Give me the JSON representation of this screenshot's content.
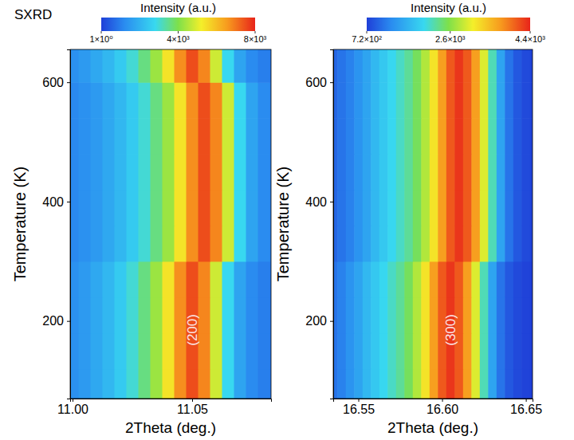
{
  "chart_data": [
    {
      "type": "heatmap",
      "title": "SXRD",
      "xlabel": "2Theta (deg.)",
      "ylabel": "Temperature (K)",
      "xlim": [
        10.999,
        11.083
      ],
      "xticks": [
        {
          "value": 11.0,
          "label": "11.00"
        },
        11.05
      ],
      "ylim": [
        70,
        655
      ],
      "yticks": [
        200,
        400,
        600
      ],
      "x": [
        11.0,
        11.005,
        11.01,
        11.015,
        11.02,
        11.025,
        11.03,
        11.035,
        11.04,
        11.045,
        11.05,
        11.055,
        11.06,
        11.065,
        11.07,
        11.075,
        11.08,
        11.085
      ],
      "y": [
        90,
        150,
        210,
        270,
        330,
        390,
        450,
        510,
        570,
        630
      ],
      "values": [
        [
          1300,
          1500,
          1800,
          2100,
          2500,
          3000,
          3600,
          4300,
          5400,
          6700,
          7500,
          6800,
          4800,
          2800,
          1700,
          1200,
          1000,
          900
        ],
        [
          1300,
          1500,
          1800,
          2100,
          2500,
          3000,
          3600,
          4300,
          5400,
          6700,
          7500,
          6800,
          4800,
          2800,
          1700,
          1200,
          1000,
          900
        ],
        [
          1300,
          1500,
          1800,
          2100,
          2500,
          3000,
          3600,
          4300,
          5400,
          6700,
          7500,
          6800,
          4800,
          2800,
          1700,
          1200,
          1000,
          900
        ],
        [
          1300,
          1500,
          1800,
          2100,
          2500,
          3000,
          3600,
          4300,
          5400,
          6700,
          7500,
          6800,
          4800,
          2800,
          1700,
          1200,
          1000,
          900
        ],
        [
          1150,
          1300,
          1500,
          1800,
          2100,
          2500,
          3000,
          3600,
          4300,
          5400,
          6700,
          7500,
          6800,
          4800,
          2800,
          1700,
          1200,
          1000
        ],
        [
          1150,
          1300,
          1500,
          1800,
          2100,
          2500,
          3000,
          3600,
          4300,
          5400,
          6700,
          7500,
          6800,
          4800,
          2800,
          1700,
          1200,
          1000
        ],
        [
          1150,
          1300,
          1500,
          1800,
          2100,
          2500,
          3000,
          3600,
          4300,
          5400,
          6700,
          7500,
          6800,
          4800,
          2800,
          1700,
          1200,
          1000
        ],
        [
          1150,
          1300,
          1500,
          1800,
          2100,
          2500,
          3000,
          3600,
          4300,
          5400,
          6700,
          7500,
          6800,
          4800,
          2800,
          1700,
          1200,
          1000
        ],
        [
          1150,
          1300,
          1500,
          1800,
          2100,
          2500,
          3000,
          3600,
          4300,
          5400,
          6700,
          7500,
          6800,
          4800,
          2800,
          1700,
          1200,
          1000
        ],
        [
          1300,
          1500,
          1800,
          2100,
          2500,
          3000,
          3600,
          4300,
          5400,
          6700,
          7500,
          6800,
          4800,
          2800,
          1700,
          1200,
          1000,
          900
        ]
      ],
      "colorbar": {
        "title": "Intensity (a.u.)",
        "lim": [
          1,
          8000
        ],
        "ticks": [
          {
            "value": 1,
            "label": "1×10⁰"
          },
          {
            "value": 4000,
            "label": "4×10³"
          },
          {
            "value": 8000,
            "label": "8×10³"
          }
        ]
      },
      "annotations": [
        {
          "text": "(200)",
          "x": 11.05,
          "y": 185
        }
      ]
    },
    {
      "type": "heatmap",
      "xlabel": "2Theta (deg.)",
      "ylabel": "Temperature (K)",
      "xlim": [
        16.535,
        16.654
      ],
      "xticks": [
        16.55,
        {
          "value": 16.6,
          "label": "16.60"
        },
        16.65
      ],
      "ylim": [
        70,
        655
      ],
      "yticks": [
        200,
        400,
        600
      ],
      "x": [
        16.535,
        16.54,
        16.545,
        16.55,
        16.555,
        16.56,
        16.565,
        16.57,
        16.575,
        16.58,
        16.585,
        16.59,
        16.595,
        16.6,
        16.605,
        16.61,
        16.615,
        16.62,
        16.625,
        16.63,
        16.635,
        16.64,
        16.645,
        16.65,
        16.655
      ],
      "y": [
        90,
        150,
        210,
        270,
        330,
        390,
        450,
        510,
        570,
        630
      ],
      "values": [
        [
          1100,
          1200,
          1350,
          1500,
          1700,
          1850,
          2000,
          2150,
          2300,
          2500,
          2800,
          3200,
          3700,
          4100,
          4300,
          4100,
          3700,
          3000,
          2200,
          1500,
          1100,
          900,
          800,
          750,
          720
        ],
        [
          1100,
          1200,
          1350,
          1500,
          1700,
          1850,
          2000,
          2150,
          2300,
          2500,
          2800,
          3200,
          3700,
          4100,
          4300,
          4100,
          3700,
          3000,
          2200,
          1500,
          1100,
          900,
          800,
          750,
          720
        ],
        [
          1100,
          1200,
          1350,
          1500,
          1700,
          1850,
          2000,
          2150,
          2300,
          2500,
          2800,
          3200,
          3700,
          4100,
          4300,
          4100,
          3700,
          3000,
          2200,
          1500,
          1100,
          900,
          800,
          750,
          720
        ],
        [
          1100,
          1200,
          1350,
          1500,
          1700,
          1850,
          2000,
          2150,
          2300,
          2500,
          2800,
          3200,
          3700,
          4100,
          4300,
          4100,
          3700,
          3000,
          2200,
          1500,
          1100,
          900,
          800,
          750,
          720
        ],
        [
          1000,
          1100,
          1200,
          1350,
          1500,
          1700,
          1850,
          2000,
          2150,
          2300,
          2500,
          2800,
          3200,
          3700,
          4100,
          4300,
          4100,
          3700,
          3000,
          2200,
          1500,
          1100,
          900,
          800,
          750
        ],
        [
          1000,
          1100,
          1200,
          1350,
          1500,
          1700,
          1850,
          2000,
          2150,
          2300,
          2500,
          2800,
          3200,
          3700,
          4100,
          4300,
          4100,
          3700,
          3000,
          2200,
          1500,
          1100,
          900,
          800,
          750
        ],
        [
          1000,
          1100,
          1200,
          1350,
          1500,
          1700,
          1850,
          2000,
          2150,
          2300,
          2500,
          2800,
          3200,
          3700,
          4100,
          4300,
          4100,
          3700,
          3000,
          2200,
          1500,
          1100,
          900,
          800,
          750
        ],
        [
          1000,
          1100,
          1200,
          1350,
          1500,
          1700,
          1850,
          2000,
          2150,
          2300,
          2500,
          2800,
          3200,
          3700,
          4100,
          4300,
          4100,
          3700,
          3000,
          2200,
          1500,
          1100,
          900,
          800,
          750
        ],
        [
          1000,
          1100,
          1200,
          1350,
          1500,
          1700,
          1850,
          2000,
          2150,
          2300,
          2500,
          2800,
          3200,
          3700,
          4100,
          4300,
          4100,
          3700,
          3000,
          2200,
          1500,
          1100,
          900,
          800,
          750
        ],
        [
          1000,
          1100,
          1200,
          1350,
          1500,
          1700,
          1850,
          2000,
          2150,
          2300,
          2500,
          2800,
          3200,
          3700,
          4100,
          4300,
          4100,
          3700,
          3000,
          2200,
          1500,
          1100,
          900,
          800,
          750
        ]
      ],
      "colorbar": {
        "title": "Intensity (a.u.)",
        "lim": [
          720,
          4400
        ],
        "ticks": [
          {
            "value": 720,
            "label": "7.2×10²"
          },
          {
            "value": 2600,
            "label": "2.6×10³"
          },
          {
            "value": 4400,
            "label": "4.4×10³"
          }
        ]
      },
      "annotations": [
        {
          "text": "(300)",
          "x": 16.605,
          "y": 185
        }
      ]
    }
  ]
}
